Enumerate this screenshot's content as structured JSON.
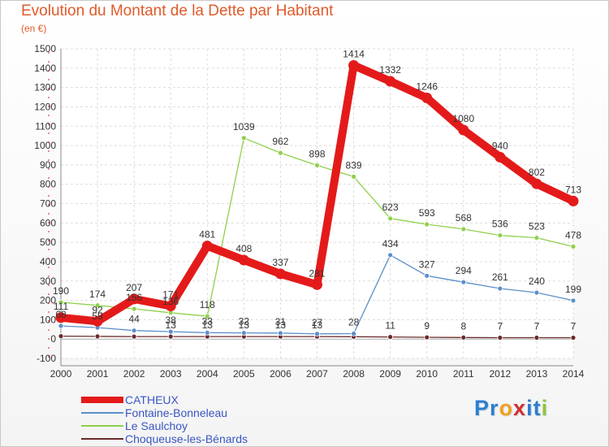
{
  "title": "Evolution du Montant de la Dette par Habitant",
  "subtitle": "(en €)",
  "logo": {
    "letters": [
      "P",
      "r",
      "o",
      "x",
      "i",
      "t",
      "i"
    ],
    "colors": [
      "#2a7fd0",
      "#2a7fd0",
      "#f0a020",
      "#d03030",
      "#2a7fd0",
      "#2a7fd0",
      "#8cc63f"
    ]
  },
  "chart_data": {
    "type": "line",
    "x": [
      "2000",
      "2001",
      "2002",
      "2003",
      "2004",
      "2005",
      "2006",
      "2007",
      "2008",
      "2009",
      "2010",
      "2011",
      "2012",
      "2013",
      "2014"
    ],
    "ylim": [
      -100,
      1500
    ],
    "yticks": [
      "-100",
      "0",
      "100",
      "200",
      "300",
      "400",
      "500",
      "600",
      "700",
      "800",
      "900",
      "1000",
      "1100",
      "1200",
      "1300",
      "1400",
      "1500"
    ],
    "grid": true,
    "legend_position": "bottom-left",
    "series": [
      {
        "name": "Choqueuse-les-Bénards",
        "color": "#6b2a2a",
        "values": [
          15,
          14,
          13,
          13,
          13,
          13,
          13,
          13,
          12,
          11,
          9,
          8,
          7,
          7,
          7
        ],
        "labels": [
          "",
          "",
          "",
          "13",
          "13",
          "13",
          "13",
          "13",
          "",
          "11",
          "9",
          "8",
          "7",
          "7",
          "7"
        ]
      },
      {
        "name": "Fontaine-Bonneleau",
        "color": "#5b8fc9",
        "values": [
          68,
          59,
          44,
          38,
          33,
          32,
          31,
          27,
          28,
          434,
          327,
          294,
          261,
          240,
          199
        ],
        "labels": [
          "68",
          "59",
          "44",
          "38",
          "33",
          "32",
          "31",
          "27",
          "28",
          "434",
          "327",
          "294",
          "261",
          "240",
          "199"
        ]
      },
      {
        "name": "Le Saulchoy",
        "color": "#8ed04a",
        "values": [
          190,
          174,
          156,
          136,
          118,
          1039,
          962,
          898,
          839,
          623,
          593,
          568,
          536,
          523,
          478
        ],
        "labels": [
          "190",
          "174",
          "156",
          "136",
          "118",
          "1039",
          "962",
          "898",
          "839",
          "623",
          "593",
          "568",
          "536",
          "523",
          "478"
        ]
      },
      {
        "name": "CATHEUX",
        "color": "#e41a1a",
        "values": [
          111,
          92,
          207,
          171,
          481,
          408,
          337,
          281,
          1414,
          1332,
          1246,
          1080,
          940,
          802,
          713
        ],
        "labels": [
          "111",
          "92",
          "207",
          "171",
          "481",
          "408",
          "337",
          "281",
          "1414",
          "1332",
          "1246",
          "1080",
          "940",
          "802",
          "713"
        ]
      }
    ]
  },
  "legend": [
    {
      "label": "CATHEUX",
      "color": "#e41a1a"
    },
    {
      "label": "Fontaine-Bonneleau",
      "color": "#5b8fc9"
    },
    {
      "label": "Le Saulchoy",
      "color": "#8ed04a"
    },
    {
      "label": "Choqueuse-les-Bénards",
      "color": "#6b2a2a"
    }
  ]
}
